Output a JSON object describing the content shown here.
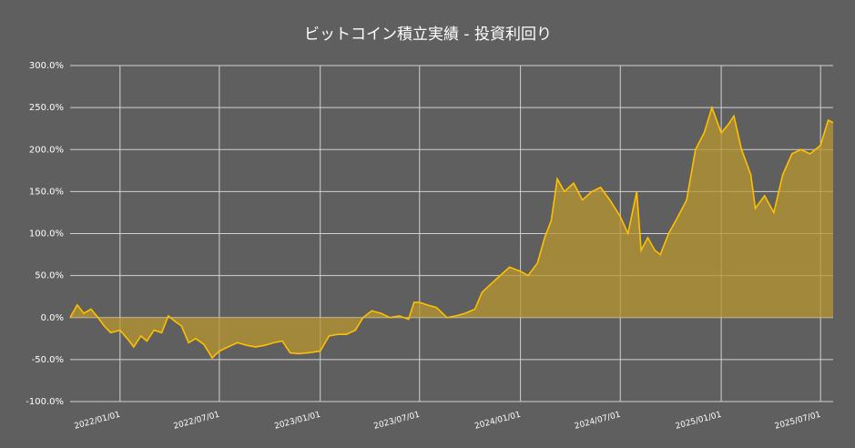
{
  "chart_data": {
    "type": "area",
    "title": "ビットコイン積立実績 - 投資利回り",
    "x": [
      "2021/10/02",
      "2021/10/15",
      "2021/10/27",
      "2021/11/09",
      "2021/11/22",
      "2021/12/03",
      "2021/12/15",
      "2022/01/01",
      "2022/01/14",
      "2022/01/26",
      "2022/02/08",
      "2022/02/19",
      "2022/03/04",
      "2022/03/18",
      "2022/03/30",
      "2022/04/12",
      "2022/04/23",
      "2022/05/06",
      "2022/05/19",
      "2022/06/03",
      "2022/06/18",
      "2022/07/01",
      "2022/07/17",
      "2022/08/03",
      "2022/08/20",
      "2022/09/05",
      "2022/09/22",
      "2022/10/08",
      "2022/10/24",
      "2022/11/07",
      "2022/11/23",
      "2022/12/10",
      "2023/01/01",
      "2023/01/17",
      "2023/02/02",
      "2023/02/18",
      "2023/03/06",
      "2023/03/20",
      "2023/04/05",
      "2023/04/22",
      "2023/05/08",
      "2023/05/25",
      "2023/06/11",
      "2023/06/21",
      "2023/07/01",
      "2023/07/15",
      "2023/08/01",
      "2023/08/20",
      "2023/09/06",
      "2023/09/22",
      "2023/10/10",
      "2023/10/23",
      "2023/11/08",
      "2023/11/25",
      "2023/12/12",
      "2024/01/01",
      "2024/01/15",
      "2024/02/01",
      "2024/02/14",
      "2024/02/26",
      "2024/03/08",
      "2024/03/21",
      "2024/04/07",
      "2024/04/23",
      "2024/05/10",
      "2024/05/26",
      "2024/06/12",
      "2024/07/01",
      "2024/07/15",
      "2024/07/31",
      "2024/08/08",
      "2024/08/20",
      "2024/09/02",
      "2024/09/12",
      "2024/09/27",
      "2024/10/14",
      "2024/10/30",
      "2024/11/15",
      "2024/12/01",
      "2024/12/15",
      "2025/01/01",
      "2025/01/14",
      "2025/01/24",
      "2025/02/07",
      "2025/02/24",
      "2025/03/04",
      "2025/03/21",
      "2025/04/07",
      "2025/04/23",
      "2025/05/10",
      "2025/05/26",
      "2025/06/12",
      "2025/07/01",
      "2025/07/15",
      "2025/07/24"
    ],
    "values": [
      0,
      15,
      5,
      10,
      0,
      -10,
      -18,
      -15,
      -25,
      -35,
      -22,
      -28,
      -15,
      -18,
      2,
      -5,
      -10,
      -30,
      -25,
      -32,
      -48,
      -40,
      -35,
      -30,
      -33,
      -35,
      -33,
      -30,
      -28,
      -42,
      -43,
      -42,
      -40,
      -22,
      -20,
      -20,
      -15,
      0,
      8,
      5,
      0,
      2,
      -2,
      18,
      18,
      15,
      12,
      0,
      2,
      5,
      10,
      30,
      40,
      50,
      60,
      55,
      50,
      65,
      95,
      115,
      165,
      150,
      160,
      140,
      150,
      155,
      140,
      120,
      100,
      150,
      80,
      95,
      80,
      75,
      100,
      120,
      140,
      200,
      220,
      250,
      220,
      230,
      240,
      200,
      170,
      130,
      145,
      125,
      170,
      195,
      200,
      195,
      205,
      235,
      232
    ],
    "color": "#ffc000",
    "area_color": "#b8962e",
    "xlim": [
      "2021/10/02",
      "2025/07/24"
    ],
    "xticks": [
      "2022/01/01",
      "2022/07/01",
      "2023/01/01",
      "2023/07/01",
      "2024/01/01",
      "2024/07/01",
      "2025/01/01",
      "2025/07/01"
    ],
    "ylim": [
      -100,
      300
    ],
    "yticks": [
      {
        "value": -100,
        "label": "-100.0%"
      },
      {
        "value": -50,
        "label": "-50.0%"
      },
      {
        "value": 0,
        "label": "0.0%"
      },
      {
        "value": 50,
        "label": "50.0%"
      },
      {
        "value": 100,
        "label": "100.0%"
      },
      {
        "value": 150,
        "label": "150.0%"
      },
      {
        "value": 200,
        "label": "200.0%"
      },
      {
        "value": 250,
        "label": "250.0%"
      },
      {
        "value": 300,
        "label": "300.0%"
      }
    ],
    "grid": true
  }
}
